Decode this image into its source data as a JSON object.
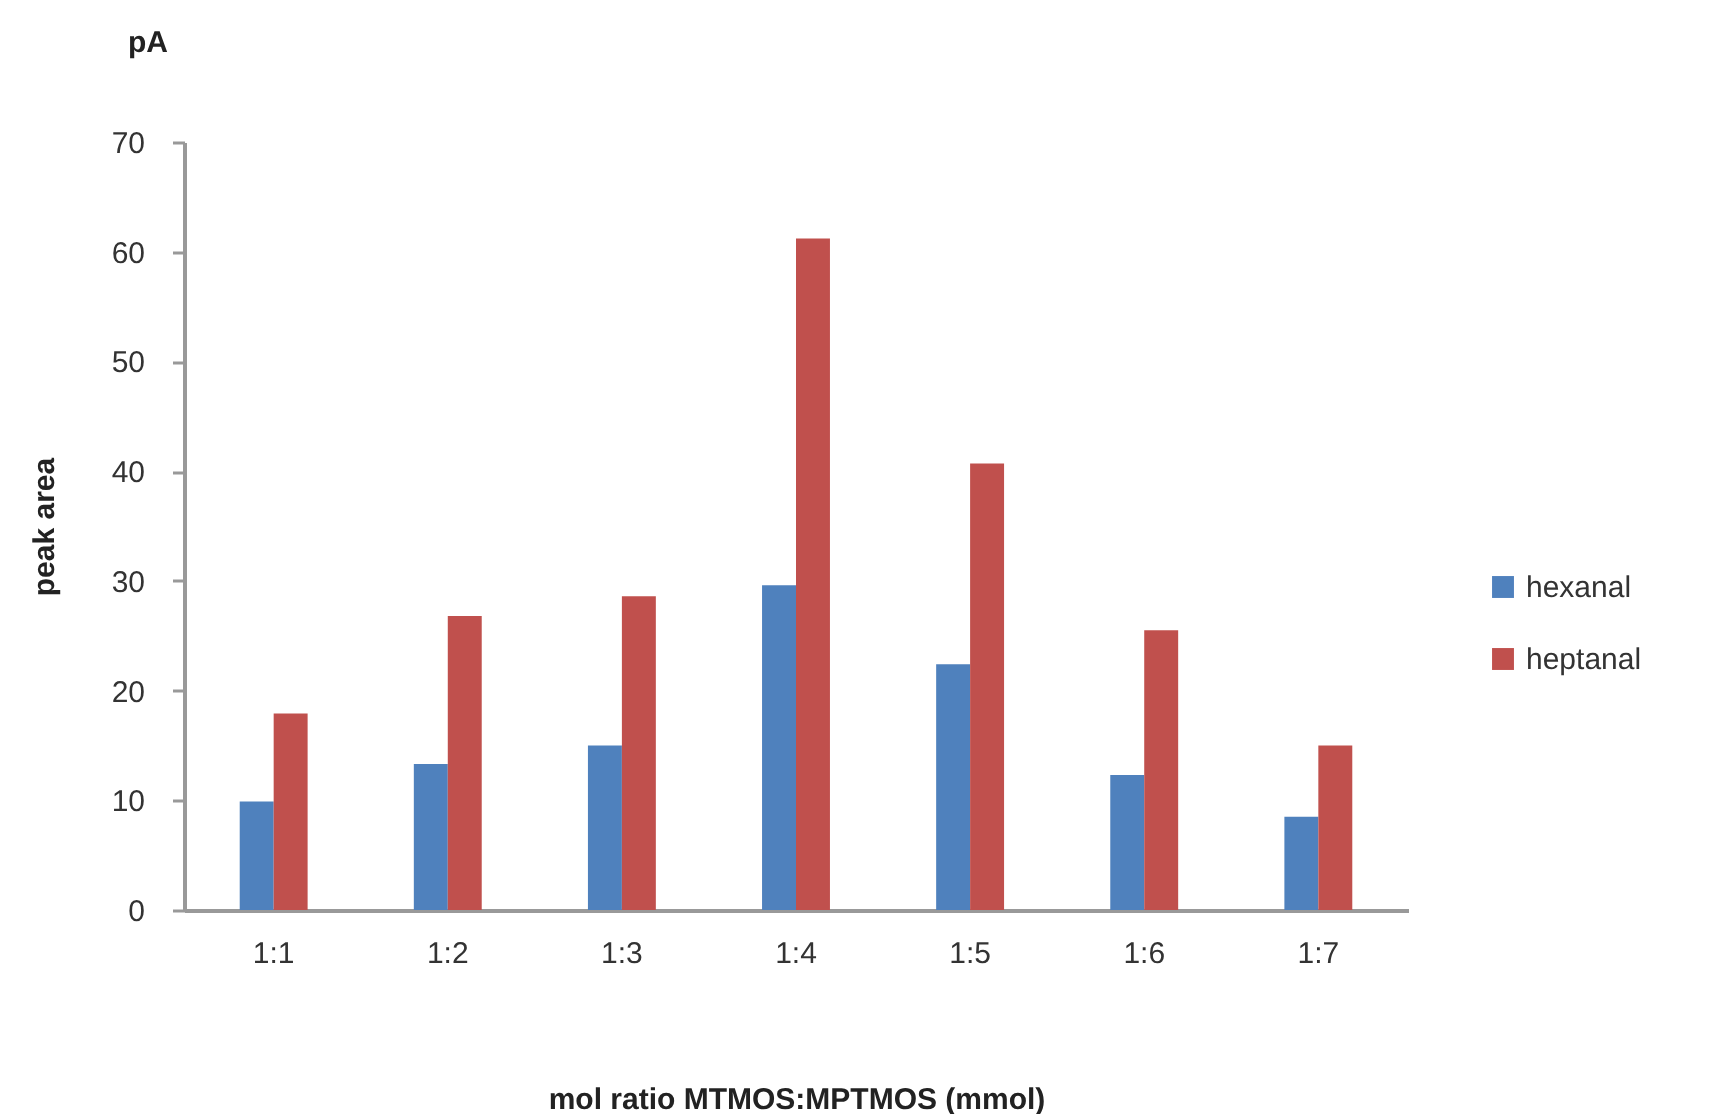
{
  "chart_data": {
    "type": "bar",
    "xlabel": "mol ratio MTMOS:MPTMOS  (mmol)",
    "ylabel": "peak area",
    "annotations": [
      "pA"
    ],
    "categories": [
      "1:1",
      "1:2",
      "1:3",
      "1:4",
      "1:5",
      "1:6",
      "1:7"
    ],
    "series": [
      {
        "name": "hexanal",
        "color": "#4f81bd",
        "values": [
          9.9,
          13.3,
          15.0,
          29.6,
          22.4,
          12.3,
          8.5
        ]
      },
      {
        "name": "heptanal",
        "color": "#c0504d",
        "values": [
          17.9,
          26.8,
          28.6,
          61.2,
          40.7,
          25.5,
          15.0
        ]
      }
    ],
    "ylim": [
      0,
      70
    ],
    "yticks": [
      0,
      10,
      20,
      30,
      40,
      50,
      60,
      70
    ],
    "grid": false,
    "legend": "right"
  }
}
